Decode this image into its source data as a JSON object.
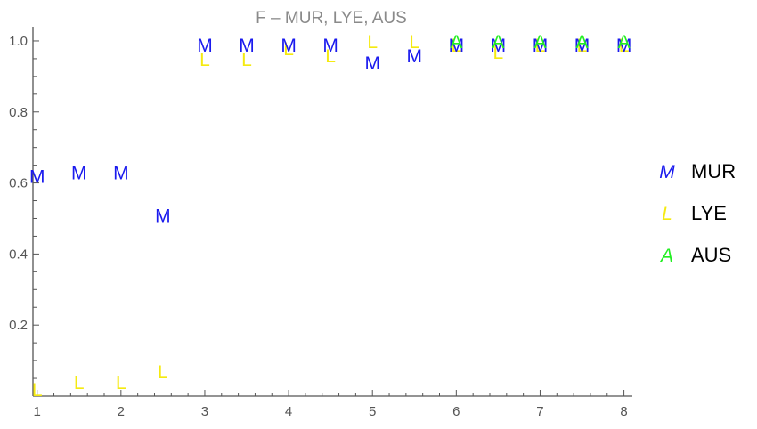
{
  "chart_data": {
    "type": "scatter",
    "title": "F – MUR, LYE, AUS",
    "xlabel": "",
    "ylabel": "",
    "xlim": [
      0.95,
      8.1
    ],
    "ylim": [
      0,
      1.04
    ],
    "x_ticks": [
      1,
      2,
      3,
      4,
      5,
      6,
      7,
      8
    ],
    "y_ticks": [
      0.2,
      0.4,
      0.6,
      0.8,
      1.0
    ],
    "y_tick_labels": [
      "0.2",
      "0.4",
      "0.6",
      "0.8",
      "1.0"
    ],
    "grid": false,
    "legend_position": "right",
    "series": [
      {
        "name": "MUR",
        "marker": "M",
        "color": "#1a1aee",
        "points": [
          {
            "x": 1.0,
            "y": 0.62
          },
          {
            "x": 1.5,
            "y": 0.63
          },
          {
            "x": 2.0,
            "y": 0.63
          },
          {
            "x": 2.5,
            "y": 0.51
          },
          {
            "x": 3.0,
            "y": 0.99
          },
          {
            "x": 3.5,
            "y": 0.99
          },
          {
            "x": 4.0,
            "y": 0.99
          },
          {
            "x": 4.5,
            "y": 0.99
          },
          {
            "x": 5.0,
            "y": 0.94
          },
          {
            "x": 5.5,
            "y": 0.96
          },
          {
            "x": 6.0,
            "y": 0.99
          },
          {
            "x": 6.5,
            "y": 0.99
          },
          {
            "x": 7.0,
            "y": 0.99
          },
          {
            "x": 7.5,
            "y": 0.99
          },
          {
            "x": 8.0,
            "y": 0.99
          }
        ]
      },
      {
        "name": "LYE",
        "marker": "L",
        "color": "#f5ea10",
        "points": [
          {
            "x": 1.0,
            "y": 0.02
          },
          {
            "x": 1.5,
            "y": 0.04
          },
          {
            "x": 2.0,
            "y": 0.04
          },
          {
            "x": 2.5,
            "y": 0.07
          },
          {
            "x": 3.0,
            "y": 0.95
          },
          {
            "x": 3.5,
            "y": 0.95
          },
          {
            "x": 4.0,
            "y": 0.98
          },
          {
            "x": 4.5,
            "y": 0.96
          },
          {
            "x": 5.0,
            "y": 1.0
          },
          {
            "x": 5.5,
            "y": 1.0
          },
          {
            "x": 6.0,
            "y": 0.99
          },
          {
            "x": 6.5,
            "y": 0.97
          },
          {
            "x": 7.0,
            "y": 0.99
          },
          {
            "x": 7.5,
            "y": 0.99
          },
          {
            "x": 8.0,
            "y": 0.99
          }
        ]
      },
      {
        "name": "AUS",
        "marker": "A",
        "color": "#22ee22",
        "points": [
          {
            "x": 6.0,
            "y": 1.0
          },
          {
            "x": 6.5,
            "y": 1.0
          },
          {
            "x": 7.0,
            "y": 1.0
          },
          {
            "x": 7.5,
            "y": 1.0
          },
          {
            "x": 8.0,
            "y": 1.0
          }
        ]
      }
    ]
  }
}
